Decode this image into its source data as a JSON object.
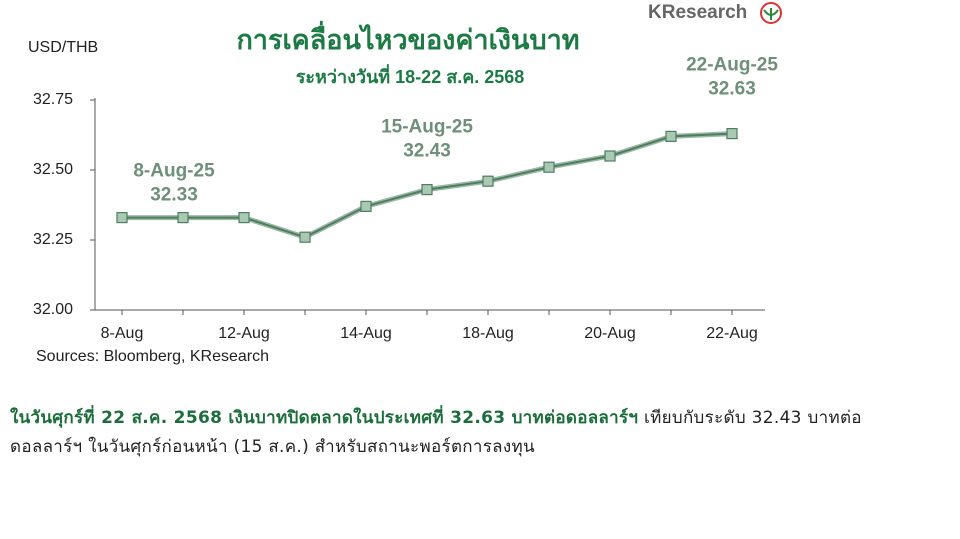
{
  "chart_data": {
    "type": "line",
    "title": "การเคลื่อนไหวของค่าเงินบาท",
    "subtitle": "ระหว่างวันที่ 18-22 ส.ค. 2568",
    "y_label": "USD/THB",
    "source": "Sources: Bloomberg, KResearch",
    "categories": [
      "8-Aug",
      null,
      "12-Aug",
      null,
      "14-Aug",
      null,
      "18-Aug",
      null,
      "20-Aug",
      null,
      "22-Aug"
    ],
    "values": [
      32.33,
      32.33,
      32.33,
      32.26,
      32.37,
      32.43,
      32.46,
      32.51,
      32.55,
      32.62,
      32.63
    ],
    "annotations": [
      "8-Aug-25",
      "15-Aug-25",
      "22-Aug-25"
    ],
    "color": "#4e7d62",
    "marker_color": "#a9c9b3",
    "ylim": [
      32.0,
      32.75
    ],
    "yticks": [
      {
        "value": 32.0,
        "label": "32.00"
      },
      {
        "value": 32.25,
        "label": "32.25"
      },
      {
        "value": 32.5,
        "label": "32.50"
      },
      {
        "value": 32.75,
        "label": "32.75"
      }
    ]
  },
  "logo": "KResearch",
  "body": {
    "highlight": "ในวันศุกร์ที่ 22 ส.ค. 2568 เงินบาทปิดตลาดในประเทศที่ 32.63 บาทต่อดอลลาร์ฯ",
    "text": " เทียบกับระดับ 32.43 บาทต่อดอลลาร์ฯ ในวันศุกร์ก่อนหน้า (15 ส.ค.) สำหรับสถานะพอร์ตการลงทุน"
  }
}
